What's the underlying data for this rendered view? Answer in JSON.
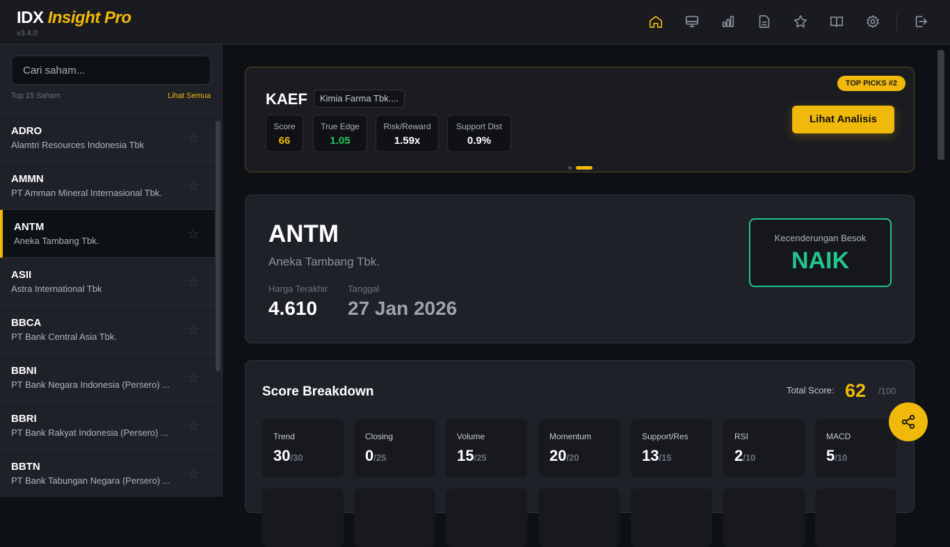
{
  "header": {
    "logo_main": "IDX",
    "logo_accent": "Insight Pro",
    "version": "v3.4.0",
    "nav": [
      {
        "icon": "home-icon",
        "active": true
      },
      {
        "icon": "monitor-icon"
      },
      {
        "icon": "bar-chart-icon"
      },
      {
        "icon": "document-icon"
      },
      {
        "icon": "star-icon"
      },
      {
        "icon": "book-icon"
      },
      {
        "icon": "gear-icon"
      },
      {
        "icon": "logout-icon"
      }
    ]
  },
  "sidebar": {
    "search_placeholder": "Cari saham...",
    "list_label": "Top 15 Saham",
    "see_all": "Lihat Semua",
    "items": [
      {
        "code": "ADRO",
        "name": "Alamtri Resources Indonesia Tbk"
      },
      {
        "code": "AMMN",
        "name": "PT Amman Mineral Internasional Tbk."
      },
      {
        "code": "ANTM",
        "name": "Aneka Tambang Tbk.",
        "active": true
      },
      {
        "code": "ASII",
        "name": "Astra International Tbk"
      },
      {
        "code": "BBCA",
        "name": "PT Bank Central Asia Tbk."
      },
      {
        "code": "BBNI",
        "name": "PT Bank Negara Indonesia (Persero) ..."
      },
      {
        "code": "BBRI",
        "name": "PT Bank Rakyat Indonesia (Persero) ..."
      },
      {
        "code": "BBTN",
        "name": "PT Bank Tabungan Negara (Persero) ..."
      }
    ]
  },
  "top_pick": {
    "ticker": "KAEF",
    "company": "Kimia Farma Tbk....",
    "badge": "TOP PICKS #2",
    "button": "Lihat Analisis",
    "metrics": [
      {
        "label": "Score",
        "value": "66",
        "color": "#f0b90b"
      },
      {
        "label": "True Edge",
        "value": "1.05",
        "color": "#22c55e"
      },
      {
        "label": "Risk/Reward",
        "value": "1.59x",
        "color": "#ffffff"
      },
      {
        "label": "Support Dist",
        "value": "0.9%",
        "color": "#ffffff"
      }
    ],
    "carousel_active": 2,
    "carousel_count": 2
  },
  "stock": {
    "ticker": "ANTM",
    "company": "Aneka Tambang Tbk.",
    "price_label": "Harga Terakhir",
    "price": "4.610",
    "date_label": "Tanggal",
    "date": "27 Jan 2026",
    "trend_label": "Kecenderungan Besok",
    "trend": "NAIK",
    "trend_color": "#22c58b"
  },
  "score": {
    "title": "Score Breakdown",
    "total_label": "Total Score:",
    "total": "62",
    "total_max": "/100",
    "tiles": [
      {
        "label": "Trend",
        "value": "30",
        "max": "/30"
      },
      {
        "label": "Closing",
        "value": "0",
        "max": "/25"
      },
      {
        "label": "Volume",
        "value": "15",
        "max": "/25"
      },
      {
        "label": "Momentum",
        "value": "20",
        "max": "/20"
      },
      {
        "label": "Support/Res",
        "value": "13",
        "max": "/15"
      },
      {
        "label": "RSI",
        "value": "2",
        "max": "/10"
      },
      {
        "label": "MACD",
        "value": "5",
        "max": "/10"
      }
    ]
  }
}
